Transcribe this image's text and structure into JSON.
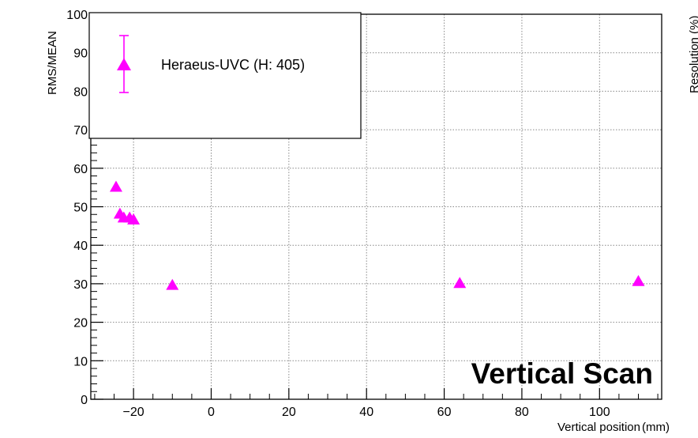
{
  "chart_data": {
    "type": "scatter",
    "xlabel": "Vertical position",
    "xunit": "(mm)",
    "ylabel": "RMS/MEAN",
    "right_axis_label": "Resolution (%)",
    "overlay_title": "Vertical Scan",
    "xlim": [
      -31,
      116
    ],
    "ylim": [
      0,
      100
    ],
    "xticks": [
      -20,
      0,
      20,
      40,
      60,
      80,
      100
    ],
    "yticks": [
      0,
      10,
      20,
      30,
      40,
      50,
      60,
      70,
      80,
      90,
      100
    ],
    "grid": true,
    "legend_position": "top-left",
    "series": [
      {
        "name": "Heraeus-UVC (H: 405)",
        "color": "#ff00ff",
        "marker": "triangle",
        "x": [
          -24.5,
          -23.5,
          -22.5,
          -21,
          -20,
          -10,
          64,
          110
        ],
        "y": [
          55,
          48,
          47,
          47,
          46.5,
          29.5,
          30,
          30.5
        ]
      }
    ]
  }
}
